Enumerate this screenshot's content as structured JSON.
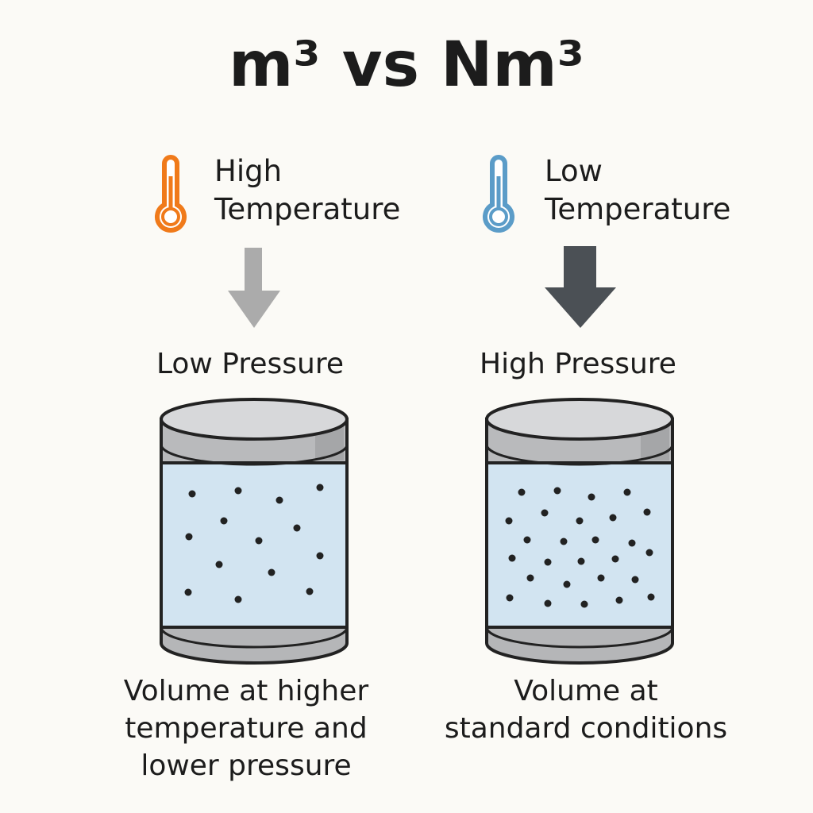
{
  "title": "m³ vs Nm³",
  "panels": [
    {
      "temperature": [
        "High",
        "Temperature"
      ],
      "pressure": "Low Pressure",
      "caption": [
        "Volume at higher",
        "temperature and",
        "lower pressure"
      ]
    },
    {
      "temperature": [
        "Low",
        "Temperature"
      ],
      "pressure": "High Pressure",
      "caption": [
        "Volume at",
        "standard conditions"
      ]
    }
  ]
}
